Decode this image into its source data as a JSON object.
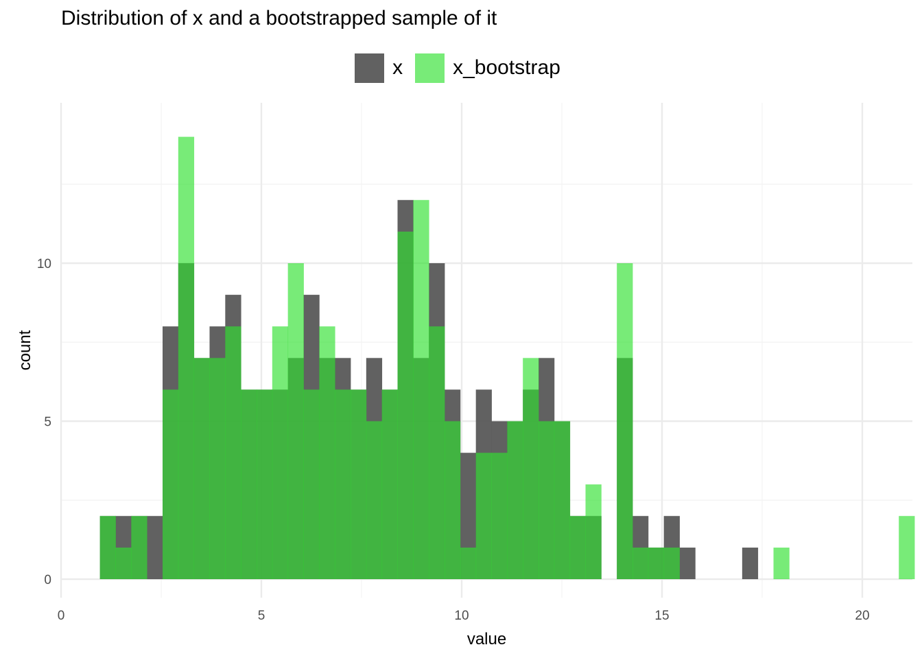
{
  "chart_data": {
    "type": "bar",
    "title": "Distribution of x and a bootstrapped sample of it",
    "xlabel": "value",
    "ylabel": "count",
    "xlim": [
      0,
      21.1
    ],
    "ylim": [
      -0.6,
      14.5
    ],
    "x_ticks": [
      0,
      5,
      10,
      15,
      20
    ],
    "y_ticks": [
      0,
      5,
      10
    ],
    "grid": true,
    "legend_position": "top",
    "bin_start": 0.97,
    "bin_width": 0.391,
    "series": [
      {
        "name": "x",
        "color": "#595959",
        "opacity": 0.95,
        "values": [
          2,
          2,
          2,
          2,
          8,
          10,
          7,
          8,
          9,
          6,
          6,
          6,
          7,
          9,
          7,
          7,
          6,
          7,
          6,
          12,
          7,
          10,
          6,
          4,
          6,
          5,
          5,
          6,
          7,
          5,
          2,
          2,
          0,
          7,
          2,
          1,
          2,
          1,
          0,
          0,
          0,
          1,
          0,
          0,
          0,
          0,
          0,
          0,
          0,
          0,
          0,
          0
        ]
      },
      {
        "name": "x_bootstrap",
        "color": "#2fe02f",
        "opacity": 0.65,
        "values": [
          2,
          1,
          2,
          0,
          6,
          14,
          7,
          7,
          8,
          6,
          6,
          8,
          10,
          6,
          8,
          6,
          6,
          5,
          6,
          11,
          12,
          8,
          5,
          1,
          4,
          4,
          5,
          7,
          5,
          5,
          2,
          3,
          0,
          10,
          1,
          1,
          1,
          0,
          0,
          0,
          0,
          0,
          0,
          1,
          0,
          0,
          0,
          0,
          0,
          0,
          0,
          2
        ]
      }
    ]
  }
}
